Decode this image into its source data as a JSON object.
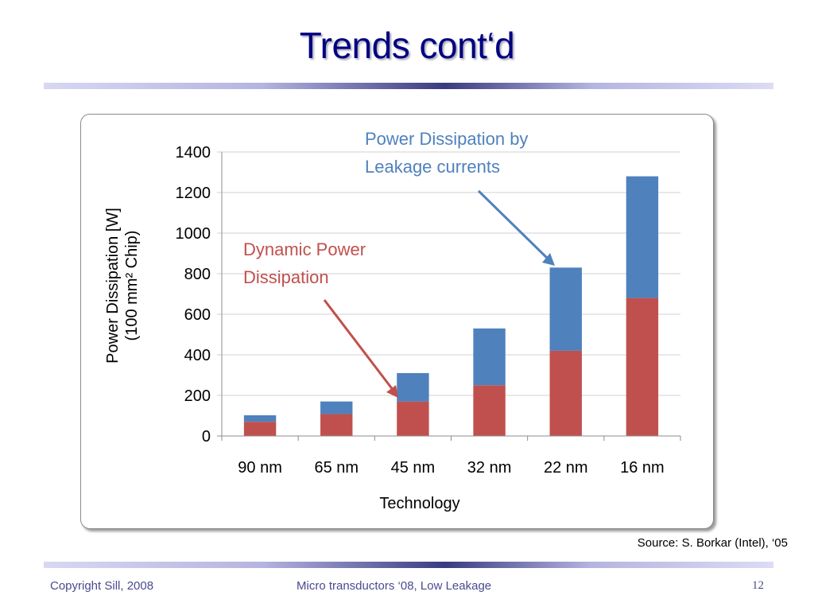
{
  "slide": {
    "title": "Trends cont‘d",
    "source": "Source: S. Borkar (Intel), ‘05",
    "footer_left": "Copyright Sill, 2008",
    "footer_center": "Micro transductors ‘08, Low Leakage",
    "page_number": "12"
  },
  "colors": {
    "title": "#000080",
    "dynamic": "#C0504D",
    "leakage": "#4F81BD",
    "footer": "#4a4a90"
  },
  "chart_data": {
    "type": "bar",
    "stacked": true,
    "title": "",
    "xlabel": "Technology",
    "ylabel_line1": "Power Dissipation [W]",
    "ylabel_line2": "(100 mm² Chip)",
    "categories": [
      "90 nm",
      "65 nm",
      "45 nm",
      "32 nm",
      "22 nm",
      "16 nm"
    ],
    "ylim": [
      0,
      1400
    ],
    "yticks": [
      0,
      200,
      400,
      600,
      800,
      1000,
      1200,
      1400
    ],
    "grid": true,
    "series": [
      {
        "name": "Dynamic Power Dissipation",
        "color": "#C0504D",
        "values": [
          70,
          108,
          170,
          250,
          420,
          680
        ]
      },
      {
        "name": "Power Dissipation by Leakage currents",
        "color": "#4F81BD",
        "values": [
          32,
          62,
          140,
          280,
          410,
          600
        ]
      }
    ],
    "annotations": [
      {
        "lines": [
          "Power Dissipation by",
          "Leakage currents"
        ],
        "color": "#4F81BD",
        "points_to": "22 nm leakage"
      },
      {
        "lines": [
          "Dynamic Power",
          "Dissipation"
        ],
        "color": "#C0504D",
        "points_to": "45 nm dynamic"
      }
    ]
  }
}
